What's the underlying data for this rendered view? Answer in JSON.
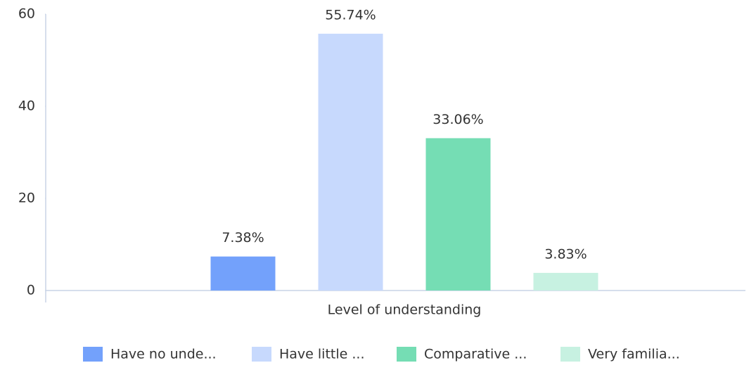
{
  "chart_data": {
    "type": "bar",
    "categories": [
      "Level of understanding"
    ],
    "series": [
      {
        "name": "Have no unde...",
        "color": "#73a1fb",
        "values": [
          7.38
        ],
        "value_labels": [
          "7.38%"
        ]
      },
      {
        "name": "Have little ...",
        "color": "#c7d9fd",
        "values": [
          55.74
        ],
        "value_labels": [
          "55.74%"
        ]
      },
      {
        "name": "Comparative ...",
        "color": "#75ddb4",
        "values": [
          33.06
        ],
        "value_labels": [
          "33.06%"
        ]
      },
      {
        "name": "Very familia...",
        "color": "#c7f1e1",
        "values": [
          3.83
        ],
        "value_labels": [
          "3.83%"
        ]
      }
    ],
    "ylim": [
      0,
      60
    ],
    "yticks": [
      0,
      20,
      40,
      60
    ],
    "grid": false,
    "legend": "bottom"
  }
}
